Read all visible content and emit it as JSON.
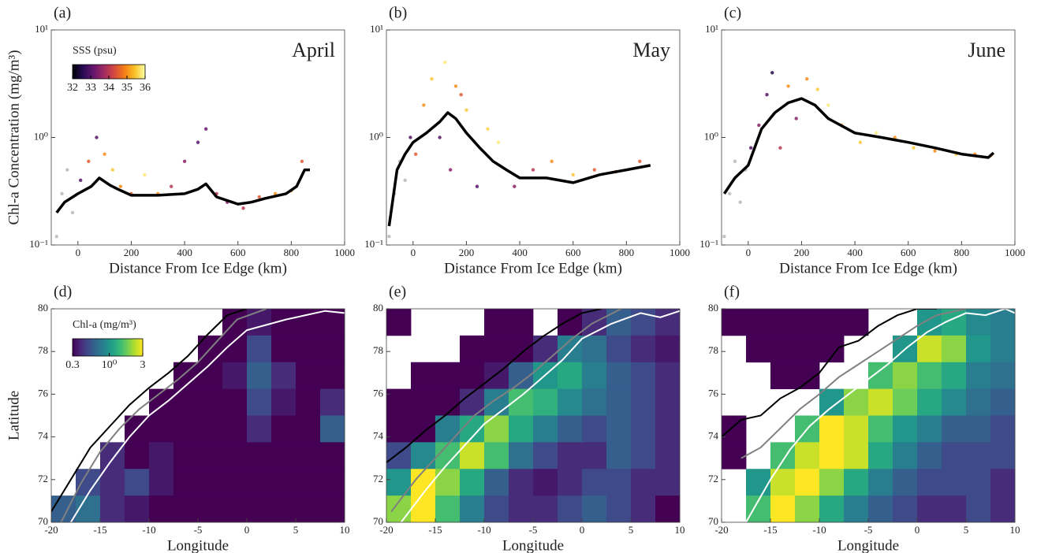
{
  "chart_data": [
    {
      "type": "scatter",
      "label": "(a)",
      "annotation": "April",
      "xlabel": "Distance From Ice Edge (km)",
      "ylabel": "Chl-a Concentration (mg/m³)",
      "xlim": [
        -100,
        1000
      ],
      "ylim": [
        0.1,
        10
      ],
      "log_y": true,
      "xticks": [
        0,
        200,
        400,
        600,
        800,
        1000
      ],
      "yticks": [
        {
          "value": 0.1,
          "label": "10⁻¹"
        },
        {
          "value": 1,
          "label": "10⁰"
        },
        {
          "value": 10,
          "label": "10¹"
        }
      ],
      "colorbar": {
        "label": "SSS (psu)",
        "colormap": "inferno",
        "lim": [
          32,
          36
        ],
        "ticks": [
          32,
          33,
          34,
          35,
          36
        ]
      },
      "series": [
        {
          "x": [
            -80,
            -60,
            -40,
            -20,
            10,
            40,
            70,
            100,
            130,
            160,
            200,
            250,
            300,
            350,
            400,
            450,
            480,
            520,
            560,
            620,
            680,
            740,
            800,
            840
          ],
          "values": [
            0.12,
            0.3,
            0.5,
            0.2,
            0.4,
            0.6,
            1.0,
            0.7,
            0.5,
            0.35,
            0.3,
            0.45,
            0.3,
            0.35,
            0.6,
            0.9,
            1.2,
            0.3,
            0.25,
            0.22,
            0.28,
            0.3,
            0.32,
            0.6
          ],
          "sss": [
            null,
            null,
            null,
            null,
            33,
            34.5,
            33,
            35,
            35.5,
            35,
            34.5,
            35.8,
            35,
            34,
            33.5,
            33,
            33.2,
            34,
            33.5,
            34,
            34.5,
            35,
            35,
            34.5
          ]
        },
        {
          "color": "#000000",
          "x": [
            -80,
            -50,
            0,
            50,
            80,
            120,
            150,
            200,
            300,
            400,
            450,
            480,
            520,
            600,
            650,
            700,
            780,
            820,
            850,
            870
          ],
          "values": [
            0.2,
            0.25,
            0.3,
            0.35,
            0.42,
            0.36,
            0.33,
            0.29,
            0.29,
            0.3,
            0.33,
            0.37,
            0.28,
            0.24,
            0.25,
            0.27,
            0.3,
            0.35,
            0.5,
            0.5
          ]
        }
      ]
    },
    {
      "type": "scatter",
      "label": "(b)",
      "annotation": "May",
      "xlabel": "Distance From Ice Edge (km)",
      "xlim": [
        -100,
        1000
      ],
      "ylim": [
        0.1,
        10
      ],
      "log_y": true,
      "xticks": [
        0,
        200,
        400,
        600,
        800,
        1000
      ],
      "yticks": [
        {
          "value": 0.1,
          "label": "10⁻¹"
        },
        {
          "value": 1,
          "label": "10⁰"
        },
        {
          "value": 10,
          "label": "10¹"
        }
      ],
      "series": [
        {
          "x": [
            -90,
            -70,
            -50,
            -30,
            -10,
            10,
            40,
            70,
            100,
            120,
            140,
            160,
            180,
            200,
            240,
            280,
            320,
            380,
            450,
            520,
            600,
            680,
            760,
            850
          ],
          "values": [
            0.12,
            0.3,
            0.6,
            0.4,
            1.0,
            0.7,
            2.0,
            3.5,
            1.0,
            5.0,
            0.5,
            3.0,
            2.5,
            1.8,
            0.35,
            1.2,
            0.9,
            0.35,
            0.5,
            0.6,
            0.45,
            0.5,
            0.48,
            0.6
          ],
          "sss": [
            null,
            null,
            null,
            null,
            33,
            34.5,
            35,
            35.5,
            33,
            35.8,
            33.5,
            35,
            34.5,
            35.5,
            33,
            35.6,
            35.8,
            33.5,
            34,
            35,
            35.5,
            34.5,
            35,
            34.5
          ]
        },
        {
          "color": "#000000",
          "x": [
            -90,
            -60,
            -30,
            0,
            50,
            100,
            130,
            160,
            200,
            250,
            300,
            350,
            400,
            500,
            600,
            700,
            800,
            890
          ],
          "values": [
            0.15,
            0.5,
            0.7,
            0.9,
            1.1,
            1.4,
            1.7,
            1.5,
            1.1,
            0.8,
            0.6,
            0.5,
            0.42,
            0.42,
            0.38,
            0.45,
            0.5,
            0.55
          ]
        }
      ]
    },
    {
      "type": "scatter",
      "label": "(c)",
      "annotation": "June",
      "xlabel": "Distance From Ice Edge (km)",
      "xlim": [
        -100,
        1000
      ],
      "ylim": [
        0.1,
        10
      ],
      "log_y": true,
      "xticks": [
        0,
        200,
        400,
        600,
        800,
        1000
      ],
      "yticks": [
        {
          "value": 0.1,
          "label": "10⁻¹"
        },
        {
          "value": 1,
          "label": "10⁰"
        },
        {
          "value": 10,
          "label": "10¹"
        }
      ],
      "series": [
        {
          "x": [
            -90,
            -70,
            -50,
            -30,
            -10,
            10,
            40,
            70,
            90,
            120,
            150,
            180,
            220,
            260,
            300,
            350,
            420,
            480,
            550,
            620,
            700,
            780,
            850,
            910
          ],
          "values": [
            0.12,
            0.3,
            0.6,
            0.25,
            0.5,
            0.8,
            1.3,
            2.5,
            4.0,
            0.8,
            3.0,
            1.5,
            3.5,
            2.8,
            2.0,
            1.3,
            0.9,
            1.1,
            1.0,
            0.8,
            0.75,
            0.7,
            0.7,
            0.68
          ],
          "sss": [
            null,
            null,
            null,
            null,
            null,
            33,
            33.5,
            33,
            32.5,
            34,
            35,
            33.5,
            35,
            35.5,
            35.8,
            35,
            35.5,
            35.8,
            35,
            35.5,
            35,
            35.5,
            35,
            35
          ]
        },
        {
          "color": "#000000",
          "x": [
            -90,
            -50,
            0,
            50,
            100,
            150,
            200,
            250,
            300,
            400,
            500,
            600,
            700,
            800,
            900,
            920
          ],
          "values": [
            0.3,
            0.42,
            0.55,
            1.2,
            1.7,
            2.1,
            2.3,
            2.0,
            1.5,
            1.1,
            1.0,
            0.9,
            0.8,
            0.7,
            0.65,
            0.72
          ]
        }
      ]
    },
    {
      "type": "heatmap",
      "label": "(d)",
      "xlabel": "Longitude",
      "ylabel": "Latitude",
      "xlim": [
        -20,
        10
      ],
      "ylim": [
        70,
        80
      ],
      "xticks": [
        -20,
        -15,
        -10,
        -5,
        0,
        5,
        10
      ],
      "yticks": [
        70,
        72,
        74,
        76,
        78,
        80
      ],
      "colorbar": {
        "label": "Chl-a (mg/m³)",
        "colormap": "viridis",
        "log": true,
        "lim": [
          0.3,
          3
        ],
        "ticks": [
          0.3,
          {
            "value": 1,
            "label": "10⁰"
          },
          3
        ]
      },
      "z": [
        [
          null,
          null,
          null,
          null,
          null,
          null,
          null,
          0.3,
          0.35,
          0.3,
          0.25,
          0.3
        ],
        [
          null,
          null,
          null,
          null,
          null,
          null,
          0.3,
          0.3,
          0.5,
          0.3,
          0.25,
          0.25
        ],
        [
          null,
          null,
          null,
          null,
          null,
          0.25,
          0.3,
          0.35,
          0.6,
          0.4,
          0.3,
          0.25
        ],
        [
          null,
          null,
          null,
          null,
          0.3,
          0.25,
          0.25,
          0.3,
          0.5,
          0.35,
          0.3,
          0.4
        ],
        [
          null,
          null,
          null,
          0.3,
          0.25,
          0.25,
          0.25,
          0.3,
          0.4,
          0.3,
          0.3,
          0.6
        ],
        [
          null,
          null,
          0.4,
          0.3,
          0.35,
          0.25,
          0.25,
          0.25,
          0.25,
          0.25,
          0.3,
          0.3
        ],
        [
          null,
          0.5,
          0.4,
          0.5,
          0.35,
          0.3,
          0.25,
          0.25,
          0.25,
          0.25,
          0.25,
          0.25
        ],
        [
          0.6,
          0.7,
          0.4,
          0.35,
          0.3,
          0.25,
          0.25,
          0.25,
          0.25,
          0.25,
          0.25,
          0.25
        ]
      ],
      "series": [
        {
          "color": "#000000",
          "x": [
            -20,
            -18,
            -16,
            -14,
            -12,
            -10,
            -8,
            -6,
            -4,
            -2,
            0
          ],
          "values": [
            70.5,
            72,
            73.5,
            74.5,
            75.5,
            76.3,
            77,
            77.8,
            78.8,
            79.7,
            80
          ]
        },
        {
          "color": "#808080",
          "x": [
            -19,
            -17,
            -15,
            -13,
            -11,
            -9,
            -7,
            -5,
            -3,
            -1,
            2
          ],
          "values": [
            70,
            71.8,
            73.3,
            74.4,
            75.3,
            76,
            76.7,
            77.5,
            78.5,
            79.5,
            80
          ]
        },
        {
          "color": "#ffffff",
          "x": [
            -18,
            -16,
            -14,
            -12,
            -10,
            -8,
            -6,
            -4,
            -2,
            0,
            4,
            8,
            10
          ],
          "values": [
            70,
            71.5,
            72.8,
            74,
            75,
            75.7,
            76.5,
            77.3,
            78.2,
            79,
            79.5,
            79.9,
            79.8
          ]
        }
      ]
    },
    {
      "type": "heatmap",
      "label": "(e)",
      "xlabel": "Longitude",
      "xlim": [
        -20,
        10
      ],
      "ylim": [
        70,
        80
      ],
      "xticks": [
        -20,
        -15,
        -10,
        -5,
        0,
        5,
        10
      ],
      "yticks": [
        70,
        72,
        74,
        76,
        78,
        80
      ],
      "z": [
        [
          0.3,
          null,
          null,
          null,
          0.25,
          0.25,
          null,
          0.3,
          0.4,
          0.6,
          0.5,
          0.4
        ],
        [
          null,
          null,
          null,
          0.25,
          0.3,
          0.3,
          0.4,
          0.8,
          0.7,
          0.5,
          0.4,
          0.35
        ],
        [
          null,
          0.3,
          0.3,
          0.25,
          0.35,
          0.6,
          1.0,
          1.2,
          0.8,
          0.6,
          0.5,
          0.4
        ],
        [
          0.25,
          0.3,
          0.3,
          0.4,
          0.8,
          1.5,
          1.3,
          0.9,
          0.7,
          0.6,
          0.5,
          0.4
        ],
        [
          0.3,
          0.3,
          0.8,
          1.2,
          2.0,
          1.2,
          0.8,
          0.6,
          0.5,
          0.6,
          0.5,
          0.4
        ],
        [
          0.5,
          0.9,
          1.5,
          2.5,
          1.5,
          0.7,
          0.5,
          0.4,
          0.4,
          0.6,
          0.5,
          0.4
        ],
        [
          1.0,
          3.0,
          2.0,
          1.2,
          0.6,
          0.4,
          0.35,
          0.4,
          0.5,
          0.5,
          0.4,
          0.4
        ],
        [
          2.0,
          3.5,
          1.5,
          0.8,
          0.5,
          0.4,
          0.4,
          0.5,
          0.6,
          0.5,
          0.4,
          0.3
        ]
      ],
      "series": [
        {
          "color": "#000000",
          "x": [
            -20,
            -18,
            -16,
            -14,
            -12,
            -10,
            -8,
            -6,
            -4,
            -2,
            0,
            2
          ],
          "values": [
            72.8,
            73.5,
            74.3,
            75,
            75.8,
            76.5,
            77.2,
            78,
            78.7,
            79.3,
            79.8,
            80
          ]
        },
        {
          "color": "#808080",
          "x": [
            -19.5,
            -17,
            -15,
            -13,
            -11,
            -9,
            -7,
            -5,
            -3,
            -1,
            1,
            4
          ],
          "values": [
            70.5,
            72,
            73,
            74,
            75,
            75.7,
            76.3,
            77,
            77.8,
            78.6,
            79.3,
            80
          ]
        },
        {
          "color": "#ffffff",
          "x": [
            -18.5,
            -16,
            -14,
            -12,
            -10,
            -8,
            -6,
            -4,
            -2,
            0,
            3,
            6,
            8,
            10
          ],
          "values": [
            70,
            71.5,
            72.6,
            73.6,
            74.6,
            75.3,
            76,
            76.8,
            77.6,
            78.6,
            79.3,
            79.8,
            79.6,
            79.9
          ]
        }
      ]
    },
    {
      "type": "heatmap",
      "label": "(f)",
      "xlabel": "Longitude",
      "xlim": [
        -20,
        10
      ],
      "ylim": [
        70,
        80
      ],
      "xticks": [
        -20,
        -15,
        -10,
        -5,
        0,
        5,
        10
      ],
      "yticks": [
        70,
        72,
        74,
        76,
        78,
        80
      ],
      "z": [
        [
          0.3,
          0.3,
          0.3,
          0.3,
          0.3,
          0.3,
          null,
          null,
          1.0,
          1.2,
          0.9,
          0.8
        ],
        [
          null,
          0.3,
          0.3,
          0.3,
          0.3,
          null,
          null,
          1.0,
          2.5,
          2.0,
          1.0,
          0.8
        ],
        [
          null,
          null,
          0.3,
          0.3,
          null,
          null,
          1.5,
          2.0,
          1.5,
          1.2,
          0.8,
          0.7
        ],
        [
          null,
          null,
          null,
          null,
          1.0,
          2.0,
          2.5,
          1.8,
          1.2,
          0.9,
          0.7,
          0.6
        ],
        [
          0.3,
          null,
          null,
          1.5,
          3.0,
          2.5,
          1.5,
          1.0,
          0.8,
          0.6,
          0.6,
          0.5
        ],
        [
          0.3,
          null,
          1.5,
          2.5,
          3.5,
          2.5,
          1.2,
          0.8,
          0.6,
          0.5,
          0.5,
          0.5
        ],
        [
          null,
          1.0,
          2.5,
          3.0,
          2.0,
          1.2,
          0.8,
          0.6,
          0.5,
          0.5,
          0.5,
          0.4
        ],
        [
          null,
          1.5,
          3.0,
          2.0,
          1.2,
          0.8,
          0.6,
          0.5,
          0.4,
          0.4,
          0.5,
          0.4
        ]
      ],
      "series": [
        {
          "color": "#000000",
          "x": [
            -20,
            -18,
            -16,
            -14,
            -12,
            -10,
            -8,
            -6,
            -4,
            -2,
            0,
            2
          ],
          "values": [
            74,
            74.8,
            75,
            75.8,
            76.3,
            77,
            78.2,
            78.5,
            79.2,
            79.7,
            80,
            80
          ]
        },
        {
          "color": "#808080",
          "x": [
            -18,
            -16,
            -14,
            -12,
            -10,
            -8,
            -6,
            -4,
            -2,
            0,
            2,
            5
          ],
          "values": [
            73,
            73.5,
            74.4,
            75.3,
            76,
            76.8,
            77.4,
            78,
            78.6,
            79.2,
            79.7,
            80
          ]
        },
        {
          "color": "#ffffff",
          "x": [
            -17.5,
            -15,
            -13,
            -11,
            -9,
            -7,
            -5,
            -3,
            -1,
            1,
            3,
            5,
            7,
            9,
            10
          ],
          "values": [
            70,
            72,
            73.4,
            74.5,
            75.3,
            76,
            76.7,
            77.4,
            78.2,
            78.9,
            79.4,
            79.8,
            79.7,
            80,
            79.8
          ]
        }
      ]
    }
  ]
}
